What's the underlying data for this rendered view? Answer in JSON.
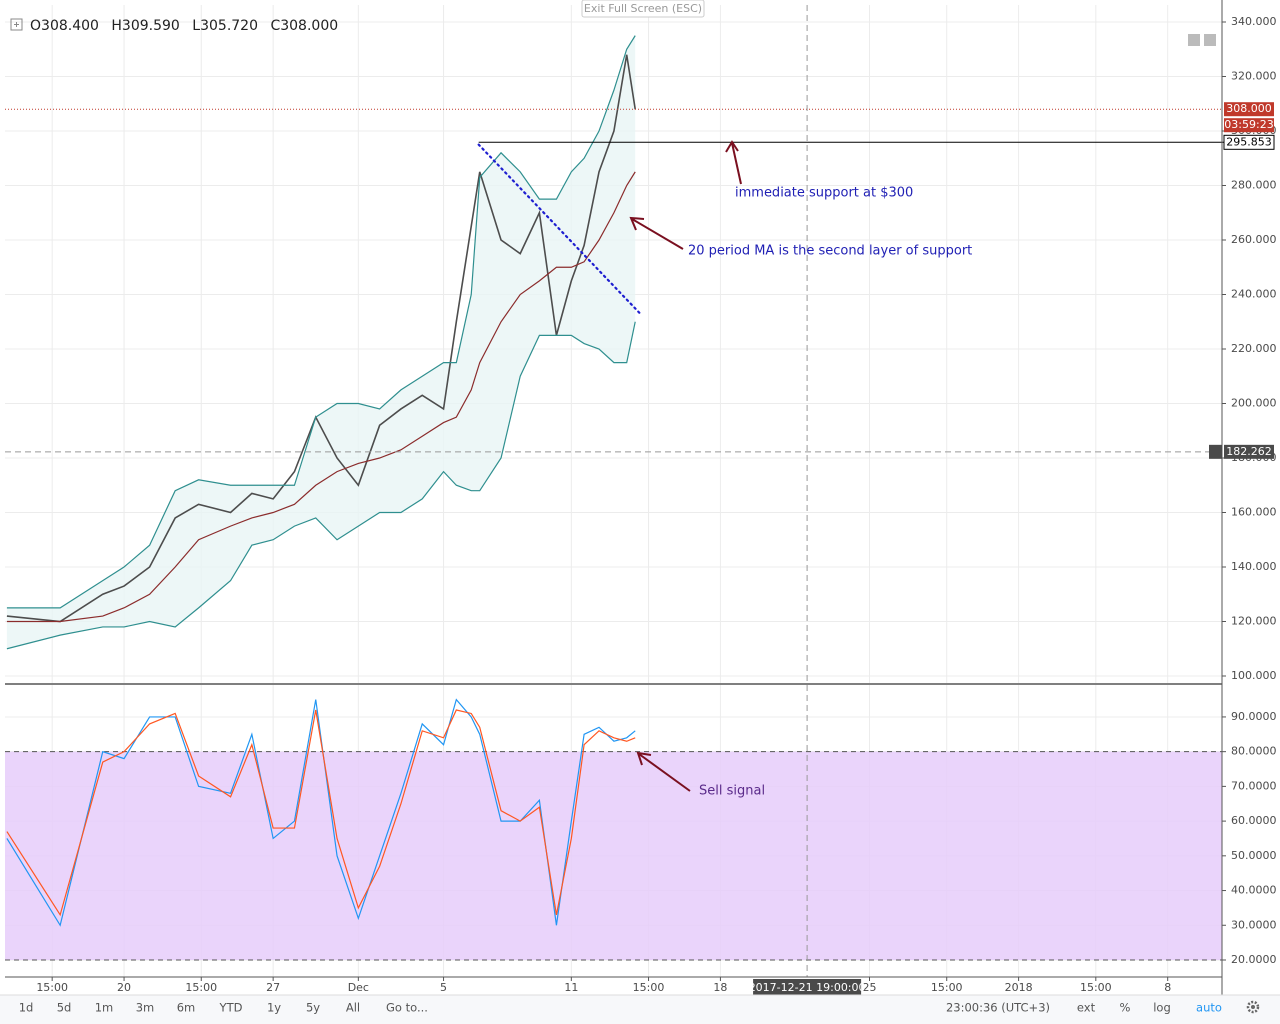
{
  "ohlc": [
    {
      "label": "O",
      "value": "308.400"
    },
    {
      "label": "H",
      "value": "309.590"
    },
    {
      "label": "L",
      "value": "305.720"
    },
    {
      "label": "C",
      "value": "308.000"
    }
  ],
  "fullscreen_button": "Exit Full Screen (ESC)",
  "chart_data": [
    {
      "type": "line",
      "x": [
        -5.5,
        -3,
        -1,
        0,
        1.2,
        2.4,
        3.5,
        5,
        6,
        7,
        8,
        9,
        10,
        11,
        12,
        13,
        14,
        15,
        15.6,
        16.3,
        16.7,
        17.7,
        18.6,
        19.5,
        20.3,
        21,
        21.6,
        22.3,
        23,
        23.6,
        24
      ],
      "xlim": [
        -5.59,
        51.55
      ],
      "ylim": [
        97.43,
        346.24
      ],
      "yticks": [
        {
          "value": 100,
          "label": "100.000"
        },
        {
          "value": 120,
          "label": "120.000"
        },
        {
          "value": 140,
          "label": "140.000"
        },
        {
          "value": 160,
          "label": "160.000"
        },
        {
          "value": 180,
          "label": "180.000"
        },
        {
          "value": 200,
          "label": "200.000"
        },
        {
          "value": 220,
          "label": "220.000"
        },
        {
          "value": 240,
          "label": "240.000"
        },
        {
          "value": 260,
          "label": "260.000"
        },
        {
          "value": 280,
          "label": "280.000"
        },
        {
          "value": 300,
          "label": "300.000"
        },
        {
          "value": 320,
          "label": "320.000"
        },
        {
          "value": 340,
          "label": "340.000"
        }
      ],
      "grid": true,
      "series": [
        {
          "color": "#4d4d4d",
          "values": [
            122,
            120,
            130,
            133,
            140,
            158,
            163,
            160,
            167,
            165,
            175,
            195,
            180,
            170,
            192,
            198,
            203,
            198,
            230,
            265,
            285,
            260,
            255,
            270,
            225,
            245,
            258,
            285,
            300,
            328,
            308
          ]
        },
        {
          "color": "#2f8f8f",
          "values": [
            125,
            125,
            135,
            140,
            148,
            168,
            172,
            170,
            170,
            170,
            170,
            195,
            200,
            200,
            198,
            205,
            210,
            215,
            215,
            240,
            283,
            292,
            285,
            275,
            275,
            285,
            290,
            300,
            315,
            330,
            335
          ]
        },
        {
          "color": "#8b2c2c",
          "values": [
            120,
            120,
            122,
            125,
            130,
            140,
            150,
            155,
            158,
            160,
            163,
            170,
            175,
            178,
            180,
            183,
            188,
            193,
            195,
            205,
            215,
            230,
            240,
            245,
            250,
            250,
            252,
            260,
            270,
            280,
            285
          ]
        },
        {
          "color": "#2f8f8f",
          "values": [
            110,
            115,
            118,
            118,
            120,
            118,
            125,
            135,
            148,
            150,
            155,
            158,
            150,
            155,
            160,
            160,
            165,
            175,
            170,
            168,
            168,
            180,
            210,
            225,
            225,
            225,
            222,
            220,
            215,
            215,
            230
          ]
        }
      ],
      "last_price": {
        "value": 308,
        "label": "308.000"
      },
      "countdown": "03:59:23",
      "support_line": {
        "value": 295.853,
        "label": "295.853",
        "x_start": 16.65
      },
      "crosshair": {
        "x": 32.07,
        "x_label": "2017-12-21 19:00:00",
        "y": {
          "value": 182.262,
          "label": "182.262"
        }
      },
      "trendline": {
        "x": [
          16.65,
          24.23
        ],
        "values": [
          295,
          233
        ]
      },
      "annotations": [
        "immediate support at $300",
        "20 period MA is the second layer of support"
      ]
    },
    {
      "type": "line",
      "x": [
        -5.5,
        -3,
        -1,
        0,
        1.2,
        2.4,
        3.5,
        5,
        6,
        7,
        8,
        9,
        10,
        11,
        12,
        13,
        14,
        15,
        15.6,
        16.3,
        16.7,
        17.7,
        18.6,
        19.5,
        20.3,
        21,
        21.6,
        22.3,
        23,
        23.6,
        24
      ],
      "xlim": [
        -5.59,
        51.55
      ],
      "xticks": [
        {
          "value": -3.375,
          "label": "15:00"
        },
        {
          "value": 0,
          "label": "20"
        },
        {
          "value": 3.625,
          "label": "15:00"
        },
        {
          "value": 7,
          "label": "27"
        },
        {
          "value": 11,
          "label": "Dec"
        },
        {
          "value": 15,
          "label": "5"
        },
        {
          "value": 21,
          "label": "11"
        },
        {
          "value": 24.625,
          "label": "15:00"
        },
        {
          "value": 28,
          "label": "18"
        },
        {
          "value": 35,
          "label": "25"
        },
        {
          "value": 38.625,
          "label": "15:00"
        },
        {
          "value": 42,
          "label": "2018"
        },
        {
          "value": 45.625,
          "label": "15:00"
        },
        {
          "value": 49,
          "label": "8"
        }
      ],
      "ylim": [
        15.1,
        99.2
      ],
      "yticks": [
        {
          "value": 20,
          "label": "20.0000"
        },
        {
          "value": 30,
          "label": "30.0000"
        },
        {
          "value": 40,
          "label": "40.0000"
        },
        {
          "value": 50,
          "label": "50.0000"
        },
        {
          "value": 60,
          "label": "60.0000"
        },
        {
          "value": 70,
          "label": "70.0000"
        },
        {
          "value": 80,
          "label": "80.0000"
        },
        {
          "value": 90,
          "label": "90.0000"
        }
      ],
      "grid": true,
      "band": [
        20,
        80
      ],
      "band_color": "#e6ccfa",
      "series": [
        {
          "color": "#2196f3",
          "values": [
            55,
            30,
            80,
            78,
            90,
            90,
            70,
            68,
            85,
            55,
            60,
            95,
            50,
            32,
            50,
            68,
            88,
            82,
            95,
            90,
            85,
            60,
            60,
            66,
            30,
            60,
            85,
            87,
            83,
            84,
            86
          ]
        },
        {
          "color": "#ff5722",
          "values": [
            57,
            33,
            77,
            80,
            88,
            91,
            73,
            67,
            82,
            58,
            58,
            92,
            55,
            35,
            47,
            65,
            86,
            84,
            92,
            91,
            87,
            63,
            60,
            64,
            33,
            55,
            82,
            86,
            84,
            83,
            84
          ]
        }
      ],
      "annotations": [
        "Sell signal"
      ]
    }
  ],
  "toolbar": {
    "ranges": [
      "1d",
      "5d",
      "1m",
      "3m",
      "6m",
      "YTD",
      "1y",
      "5y",
      "All"
    ],
    "goto": "Go to...",
    "clock": "23:00:36 (UTC+3)",
    "options": [
      "ext",
      "%",
      "log",
      "auto"
    ]
  }
}
